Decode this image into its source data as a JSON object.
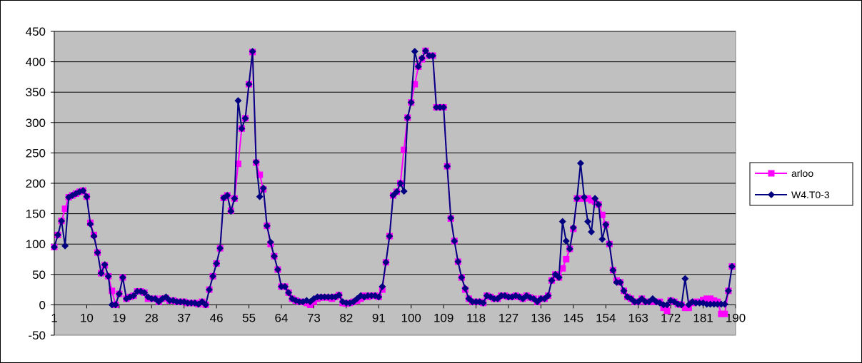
{
  "chart_data": {
    "type": "line",
    "title": "",
    "xlabel": "",
    "ylabel": "",
    "ylim": [
      -50,
      450
    ],
    "yticks": [
      -50,
      0,
      50,
      100,
      150,
      200,
      250,
      300,
      350,
      400,
      450
    ],
    "xlim": [
      1,
      190
    ],
    "xtick_labels": [
      1,
      10,
      19,
      28,
      37,
      46,
      55,
      64,
      73,
      82,
      91,
      100,
      109,
      118,
      127,
      136,
      145,
      154,
      163,
      172,
      181,
      190
    ],
    "grid": "horizontal",
    "plot_background": "#c0c0c0",
    "legend_position": "right",
    "series": [
      {
        "name": "arloo",
        "color": "#ff00ff",
        "marker": "square",
        "values": [
          95,
          115,
          138,
          158,
          177,
          180,
          183,
          186,
          188,
          178,
          135,
          115,
          86,
          52,
          65,
          47,
          23,
          0,
          18,
          45,
          10,
          13,
          15,
          22,
          22,
          20,
          10,
          10,
          10,
          5,
          10,
          11,
          7,
          7,
          5,
          5,
          5,
          3,
          3,
          3,
          1,
          5,
          0,
          25,
          47,
          68,
          93,
          176,
          180,
          155,
          175,
          232,
          290,
          307,
          363,
          416,
          234,
          214,
          190,
          130,
          100,
          80,
          58,
          30,
          30,
          20,
          10,
          7,
          5,
          5,
          3,
          0,
          5,
          10,
          12,
          12,
          12,
          10,
          13,
          16,
          3,
          2,
          3,
          5,
          7,
          10,
          15,
          13,
          15,
          15,
          13,
          25,
          70,
          113,
          180,
          186,
          200,
          255,
          308,
          333,
          363,
          392,
          404,
          418,
          410,
          410,
          325,
          325,
          325,
          228,
          142,
          105,
          71,
          45,
          25,
          10,
          5,
          5,
          5,
          3,
          15,
          13,
          10,
          10,
          15,
          15,
          13,
          13,
          15,
          13,
          10,
          15,
          12,
          10,
          5,
          10,
          10,
          15,
          40,
          50,
          45,
          60,
          75,
          92,
          125,
          175,
          175,
          175,
          175,
          172,
          170,
          165,
          148,
          132,
          100,
          57,
          40,
          37,
          23,
          13,
          10,
          5,
          5,
          10,
          5,
          5,
          5,
          5,
          5,
          -5,
          -10,
          7,
          5,
          1,
          0,
          -5,
          -5,
          3,
          5,
          5,
          8,
          10,
          10,
          7,
          5,
          -15,
          -15,
          23,
          63
        ]
      },
      {
        "name": "W4.T0-3",
        "color": "#000080",
        "marker": "diamond",
        "values": [
          95,
          115,
          138,
          97,
          177,
          180,
          183,
          186,
          188,
          178,
          133,
          113,
          86,
          52,
          66,
          47,
          0,
          0,
          18,
          45,
          10,
          13,
          15,
          22,
          22,
          20,
          13,
          10,
          10,
          5,
          10,
          13,
          7,
          7,
          5,
          5,
          5,
          3,
          3,
          3,
          1,
          5,
          0,
          25,
          47,
          68,
          93,
          176,
          180,
          154,
          175,
          336,
          290,
          307,
          363,
          417,
          235,
          178,
          192,
          130,
          103,
          80,
          58,
          30,
          30,
          20,
          10,
          7,
          5,
          5,
          7,
          5,
          10,
          13,
          13,
          13,
          13,
          13,
          13,
          16,
          5,
          3,
          3,
          5,
          10,
          15,
          13,
          15,
          15,
          15,
          13,
          30,
          70,
          113,
          180,
          186,
          200,
          187,
          308,
          333,
          417,
          392,
          406,
          418,
          410,
          410,
          325,
          325,
          325,
          228,
          143,
          105,
          71,
          45,
          27,
          10,
          5,
          5,
          5,
          3,
          15,
          13,
          10,
          10,
          15,
          15,
          13,
          13,
          15,
          13,
          10,
          15,
          12,
          10,
          5,
          10,
          10,
          15,
          40,
          50,
          45,
          137,
          105,
          92,
          127,
          175,
          233,
          177,
          137,
          120,
          175,
          165,
          108,
          132,
          100,
          57,
          37,
          37,
          23,
          13,
          10,
          5,
          5,
          10,
          5,
          5,
          10,
          5,
          3,
          0,
          0,
          7,
          5,
          1,
          0,
          43,
          0,
          5,
          3,
          3,
          3,
          1,
          1,
          1,
          1,
          1,
          1,
          23,
          63
        ]
      }
    ]
  }
}
